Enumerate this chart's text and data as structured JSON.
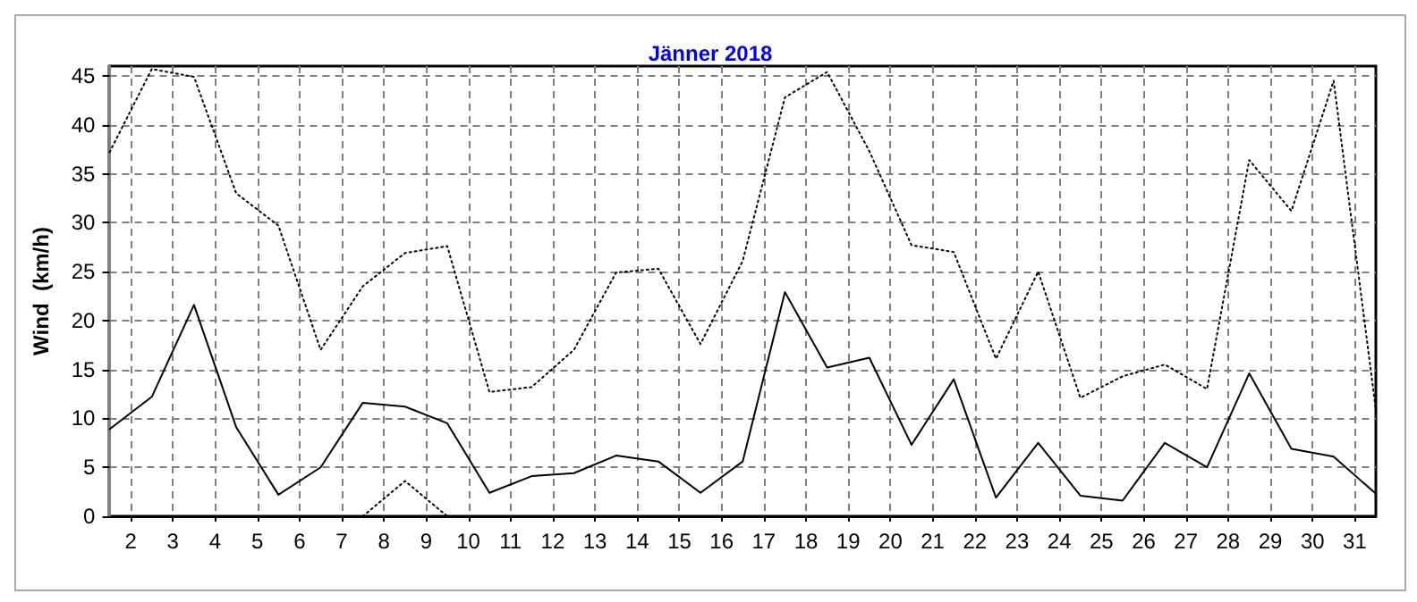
{
  "chart_data": {
    "type": "line",
    "title": "Jänner 2018",
    "ylabel": "Wind  (km/h)",
    "x": [
      1.5,
      2.5,
      3.5,
      4.5,
      5.5,
      6.5,
      7.5,
      8.5,
      9.5,
      10.5,
      11.5,
      12.5,
      13.5,
      14.5,
      15.5,
      16.5,
      17.5,
      18.5,
      19.5,
      20.5,
      21.5,
      22.5,
      23.5,
      24.5,
      25.5,
      26.5,
      27.5,
      28.5,
      29.5,
      30.5,
      31.5
    ],
    "series": [
      {
        "color": "#000000",
        "line_style": "dotted",
        "values": [
          37.2,
          45.7,
          44.9,
          33.0,
          29.7,
          17.0,
          23.5,
          26.9,
          27.6,
          12.7,
          13.2,
          17.0,
          24.9,
          25.3,
          17.6,
          26.1,
          42.8,
          45.4,
          37.3,
          27.7,
          27.0,
          16.1,
          25.0,
          12.1,
          14.3,
          15.5,
          13.0,
          36.4,
          31.2,
          44.5,
          10.9
        ]
      },
      {
        "color": "#000000",
        "line_style": "solid",
        "values": [
          8.9,
          12.2,
          21.6,
          9.1,
          2.2,
          5.0,
          11.6,
          11.2,
          9.5,
          2.4,
          4.1,
          4.4,
          6.2,
          5.6,
          2.4,
          5.6,
          22.9,
          15.2,
          16.2,
          7.3,
          14.0,
          1.9,
          7.5,
          2.1,
          1.6,
          7.5,
          5.0,
          14.6,
          6.9,
          6.1,
          2.3
        ]
      },
      {
        "color": "#000000",
        "line_style": "dotted",
        "values": [
          null,
          null,
          null,
          null,
          null,
          null,
          0,
          3.6,
          0,
          null,
          null,
          null,
          null,
          null,
          null,
          null,
          null,
          null,
          null,
          null,
          null,
          null,
          null,
          null,
          null,
          null,
          null,
          null,
          null,
          null,
          null
        ]
      }
    ],
    "xlim": [
      1.5,
      31.5
    ],
    "xticks": [
      2,
      3,
      4,
      5,
      6,
      7,
      8,
      9,
      10,
      11,
      12,
      13,
      14,
      15,
      16,
      17,
      18,
      19,
      20,
      21,
      22,
      23,
      24,
      25,
      26,
      27,
      28,
      29,
      30,
      31
    ],
    "ylim": [
      0,
      46
    ],
    "yticks": [
      0,
      5,
      10,
      15,
      20,
      25,
      30,
      35,
      40,
      45
    ],
    "grid": true,
    "marker": "none"
  }
}
